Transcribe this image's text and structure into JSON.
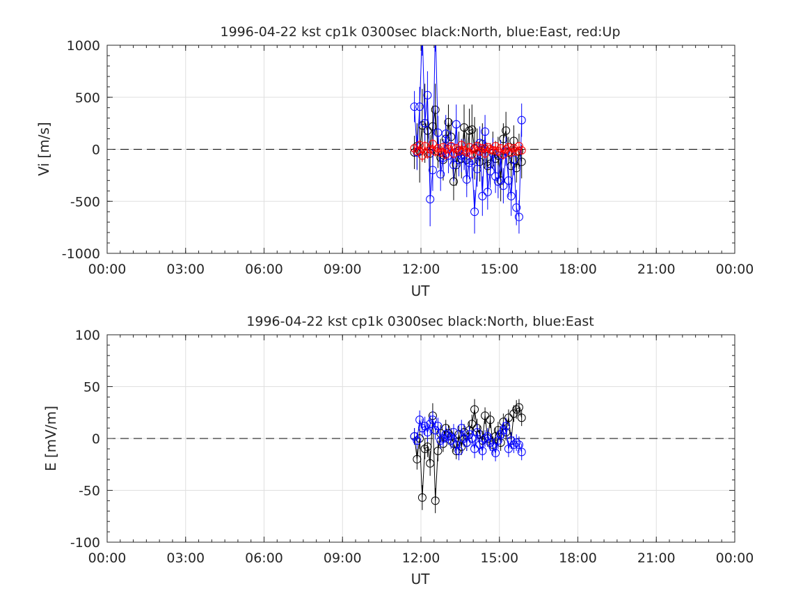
{
  "chart_data": [
    {
      "type": "scatter",
      "title": "1996-04-22 kst cp1k 0300sec black:North, blue:East, red:Up",
      "xlabel": "UT",
      "ylabel": "Vi [m/s]",
      "xlim": [
        0,
        24
      ],
      "ylim": [
        -1000,
        1000
      ],
      "xticks": [
        0,
        3,
        6,
        9,
        12,
        15,
        18,
        21,
        24
      ],
      "xtick_labels": [
        "00:00",
        "03:00",
        "06:00",
        "09:00",
        "12:00",
        "15:00",
        "18:00",
        "21:00",
        "00:00"
      ],
      "yticks": [
        -1000,
        -500,
        0,
        500,
        1000
      ],
      "ytick_labels": [
        "-1000",
        "-500",
        "0",
        "500",
        "1000"
      ],
      "grid": true,
      "zero_line": "dashed",
      "series": [
        {
          "color": "#000000",
          "x": [
            11.75,
            11.85,
            11.95,
            12.05,
            12.15,
            12.25,
            12.35,
            12.45,
            12.55,
            12.65,
            12.75,
            12.85,
            12.95,
            13.05,
            13.15,
            13.25,
            13.35,
            13.45,
            13.55,
            13.65,
            13.75,
            13.85,
            13.95,
            14.05,
            14.15,
            14.25,
            14.35,
            14.45,
            14.55,
            14.65,
            14.75,
            14.85,
            14.95,
            15.05,
            15.15,
            15.25,
            15.35,
            15.45,
            15.55,
            15.65,
            15.75,
            15.85
          ],
          "y": [
            -30,
            30,
            -20,
            230,
            250,
            180,
            -40,
            220,
            380,
            -20,
            -80,
            -100,
            100,
            260,
            120,
            -310,
            -150,
            -10,
            -90,
            210,
            -100,
            180,
            190,
            10,
            -50,
            -120,
            50,
            0,
            -160,
            -140,
            -10,
            -90,
            -60,
            -300,
            100,
            180,
            -30,
            -160,
            80,
            -180,
            -20,
            -120
          ],
          "err": [
            160,
            220,
            300,
            350,
            380,
            270,
            180,
            200,
            250,
            160,
            180,
            200,
            180,
            170,
            160,
            180,
            200,
            180,
            190,
            220,
            250,
            210,
            240,
            300,
            250,
            190,
            200,
            180,
            160,
            200,
            180,
            170,
            180,
            200,
            150,
            180,
            150,
            190,
            150,
            140,
            170,
            160
          ]
        },
        {
          "color": "#0000ff",
          "x": [
            11.75,
            11.85,
            11.95,
            12.05,
            12.15,
            12.25,
            12.35,
            12.45,
            12.55,
            12.65,
            12.75,
            12.85,
            12.95,
            13.05,
            13.15,
            13.25,
            13.35,
            13.45,
            13.55,
            13.65,
            13.75,
            13.85,
            13.95,
            14.05,
            14.15,
            14.25,
            14.35,
            14.45,
            14.55,
            14.65,
            14.75,
            14.85,
            14.95,
            15.05,
            15.15,
            15.25,
            15.35,
            15.45,
            15.55,
            15.65,
            15.75,
            15.85
          ],
          "y": [
            410,
            -30,
            410,
            1150,
            250,
            520,
            -480,
            -200,
            1200,
            160,
            -240,
            -80,
            150,
            -60,
            20,
            -150,
            240,
            -100,
            -60,
            -50,
            -290,
            -130,
            -110,
            -600,
            -190,
            60,
            -450,
            170,
            -410,
            -210,
            -40,
            -260,
            -310,
            -60,
            -350,
            -20,
            -300,
            -450,
            -100,
            -560,
            -650,
            280
          ],
          "err": [
            150,
            170,
            190,
            250,
            200,
            230,
            260,
            200,
            260,
            160,
            160,
            170,
            180,
            170,
            160,
            160,
            190,
            160,
            160,
            150,
            170,
            160,
            170,
            210,
            170,
            160,
            190,
            160,
            170,
            160,
            150,
            160,
            160,
            150,
            170,
            140,
            160,
            190,
            150,
            170,
            160,
            160
          ]
        },
        {
          "color": "#ff0000",
          "x": [
            11.75,
            11.85,
            11.95,
            12.05,
            12.15,
            12.25,
            12.35,
            12.45,
            12.55,
            12.65,
            12.75,
            12.85,
            12.95,
            13.05,
            13.15,
            13.25,
            13.35,
            13.45,
            13.55,
            13.65,
            13.75,
            13.85,
            13.95,
            14.05,
            14.15,
            14.25,
            14.35,
            14.45,
            14.55,
            14.65,
            14.75,
            14.85,
            14.95,
            15.05,
            15.15,
            15.25,
            15.35,
            15.45,
            15.55,
            15.65,
            15.75,
            15.85
          ],
          "y": [
            10,
            -20,
            40,
            -60,
            30,
            -40,
            0,
            50,
            -20,
            10,
            -30,
            20,
            -50,
            0,
            30,
            -40,
            10,
            -20,
            40,
            -10,
            -30,
            20,
            -50,
            0,
            30,
            -20,
            10,
            -40,
            20,
            0,
            -10,
            30,
            -20,
            10,
            -50,
            0,
            20,
            -30,
            10,
            -20,
            30,
            -10
          ],
          "err": [
            40,
            40,
            50,
            60,
            50,
            50,
            40,
            50,
            50,
            40,
            40,
            40,
            50,
            40,
            40,
            50,
            40,
            40,
            50,
            40,
            40,
            40,
            50,
            40,
            40,
            40,
            40,
            50,
            40,
            40,
            40,
            40,
            40,
            40,
            50,
            40,
            40,
            40,
            40,
            40,
            40,
            40
          ]
        }
      ]
    },
    {
      "type": "scatter",
      "title": "1996-04-22 kst cp1k 0300sec black:North, blue:East",
      "xlabel": "UT",
      "ylabel": "E [mV/m]",
      "xlim": [
        0,
        24
      ],
      "ylim": [
        -100,
        100
      ],
      "xticks": [
        0,
        3,
        6,
        9,
        12,
        15,
        18,
        21,
        24
      ],
      "xtick_labels": [
        "00:00",
        "03:00",
        "06:00",
        "09:00",
        "12:00",
        "15:00",
        "18:00",
        "21:00",
        "00:00"
      ],
      "yticks": [
        -100,
        -50,
        0,
        50,
        100
      ],
      "ytick_labels": [
        "-100",
        "-50",
        "0",
        "50",
        "100"
      ],
      "grid": true,
      "zero_line": "dashed",
      "series": [
        {
          "color": "#000000",
          "x": [
            11.75,
            11.85,
            11.95,
            12.05,
            12.15,
            12.25,
            12.35,
            12.45,
            12.55,
            12.65,
            12.75,
            12.85,
            12.95,
            13.05,
            13.15,
            13.25,
            13.35,
            13.45,
            13.55,
            13.65,
            13.75,
            13.85,
            13.95,
            14.05,
            14.15,
            14.25,
            14.35,
            14.45,
            14.55,
            14.65,
            14.75,
            14.85,
            14.95,
            15.05,
            15.15,
            15.25,
            15.35,
            15.45,
            15.55,
            15.65,
            15.75,
            15.85
          ],
          "y": [
            2,
            -20,
            0,
            -57,
            -10,
            -8,
            -24,
            22,
            -60,
            -12,
            5,
            -5,
            10,
            5,
            2,
            -5,
            -12,
            4,
            -8,
            6,
            -4,
            8,
            14,
            28,
            10,
            4,
            -2,
            22,
            0,
            18,
            -6,
            2,
            8,
            -4,
            16,
            6,
            20,
            -2,
            24,
            28,
            30,
            20
          ],
          "err": [
            8,
            10,
            10,
            12,
            10,
            10,
            12,
            12,
            12,
            10,
            8,
            8,
            8,
            8,
            8,
            8,
            8,
            8,
            8,
            8,
            8,
            8,
            9,
            10,
            9,
            8,
            8,
            8,
            8,
            8,
            8,
            8,
            8,
            8,
            8,
            8,
            8,
            8,
            8,
            9,
            8,
            8
          ]
        },
        {
          "color": "#0000ff",
          "x": [
            11.75,
            11.85,
            11.95,
            12.05,
            12.15,
            12.25,
            12.35,
            12.45,
            12.55,
            12.65,
            12.75,
            12.85,
            12.95,
            13.05,
            13.15,
            13.25,
            13.35,
            13.45,
            13.55,
            13.65,
            13.75,
            13.85,
            13.95,
            14.05,
            14.15,
            14.25,
            14.35,
            14.45,
            14.55,
            14.65,
            14.75,
            14.85,
            14.95,
            15.05,
            15.15,
            15.25,
            15.35,
            15.45,
            15.55,
            15.65,
            15.75,
            15.85
          ],
          "y": [
            2,
            -2,
            18,
            10,
            12,
            6,
            14,
            18,
            8,
            12,
            -2,
            0,
            4,
            2,
            -2,
            6,
            -6,
            -12,
            10,
            0,
            -4,
            4,
            0,
            -10,
            6,
            -6,
            -12,
            0,
            2,
            -4,
            -8,
            -14,
            -2,
            4,
            8,
            12,
            -10,
            -2,
            -6,
            -4,
            -6,
            -13
          ],
          "err": [
            8,
            8,
            9,
            9,
            9,
            9,
            9,
            9,
            9,
            8,
            8,
            8,
            8,
            8,
            8,
            8,
            8,
            9,
            8,
            8,
            8,
            8,
            8,
            9,
            8,
            8,
            9,
            8,
            8,
            8,
            8,
            8,
            8,
            8,
            8,
            8,
            8,
            8,
            8,
            8,
            8,
            8
          ]
        }
      ]
    }
  ]
}
